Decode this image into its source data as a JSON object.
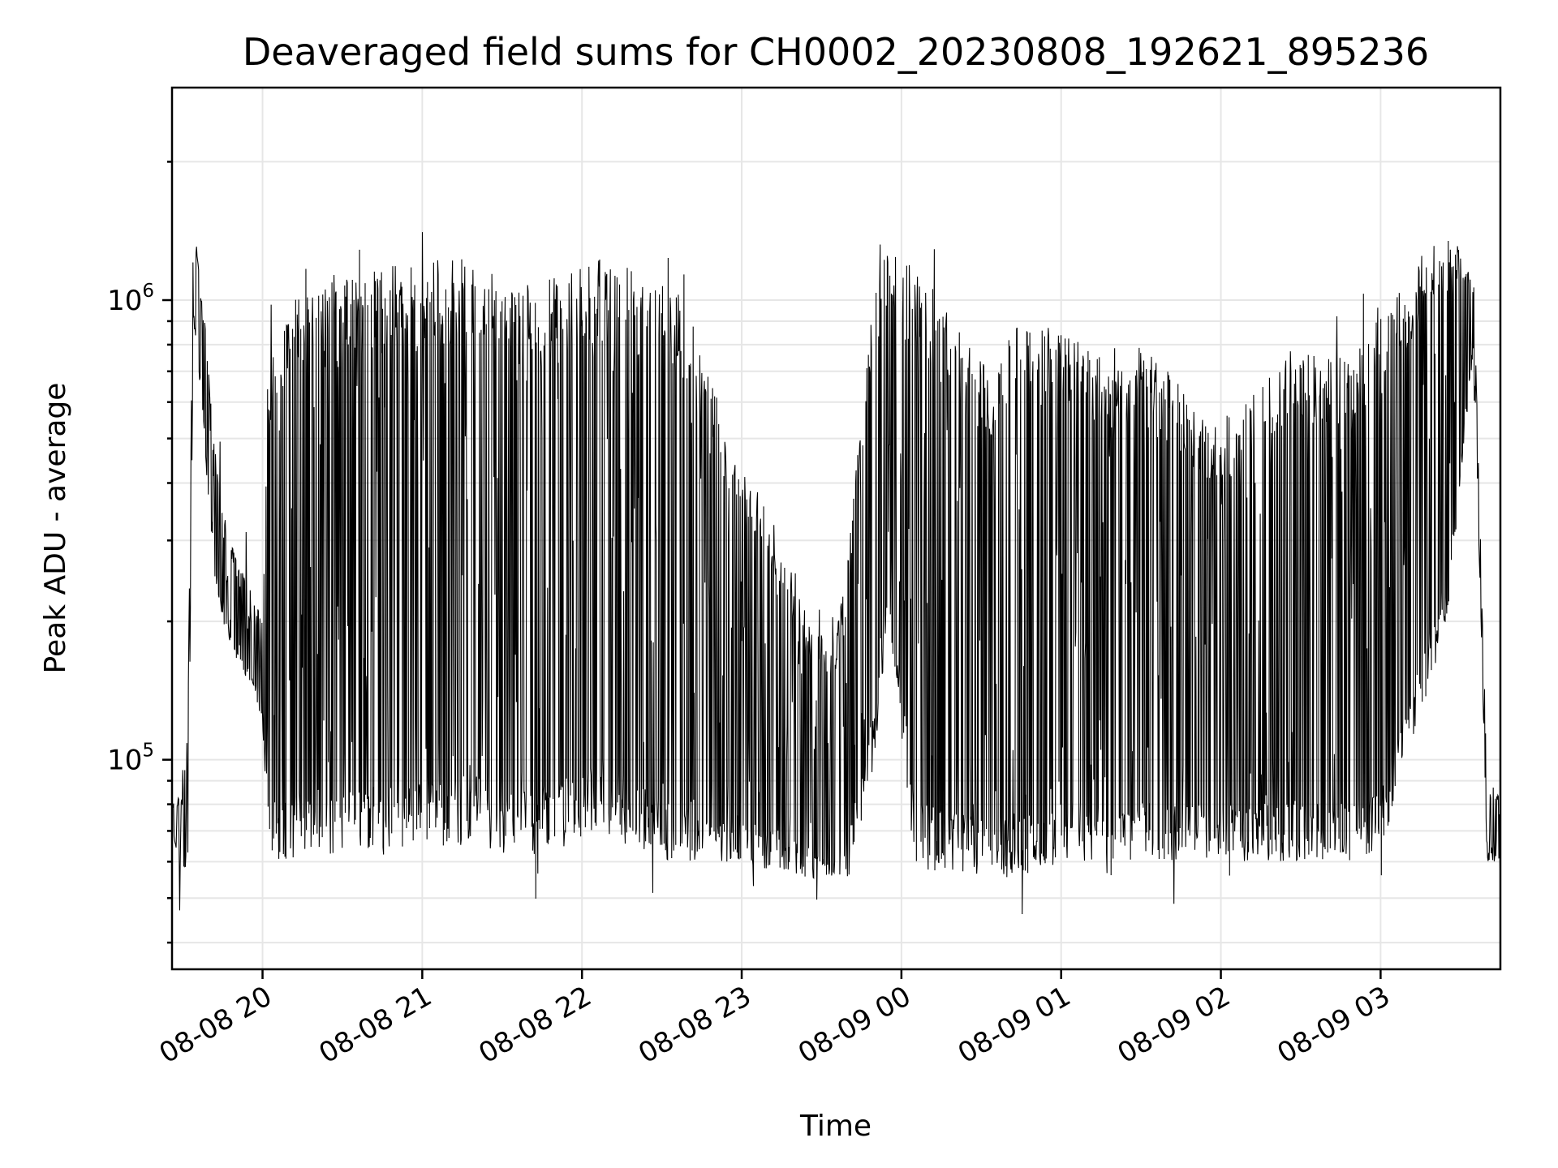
{
  "chart_data": {
    "type": "line",
    "title": "Deaveraged field sums for CH0002_20230808_192621_895236",
    "xlabel": "Time",
    "ylabel": "Peak ADU - average",
    "yscale": "log",
    "ylim": [
      35000,
      2900000
    ],
    "xlim": [
      "2023-08-08 19:26",
      "2023-08-09 03:45"
    ],
    "x_ticks": [
      {
        "value": "2023-08-08 20:00",
        "label": "08-08 20"
      },
      {
        "value": "2023-08-08 21:00",
        "label": "08-08 21"
      },
      {
        "value": "2023-08-08 22:00",
        "label": "08-08 22"
      },
      {
        "value": "2023-08-08 23:00",
        "label": "08-08 23"
      },
      {
        "value": "2023-08-09 00:00",
        "label": "08-09 00"
      },
      {
        "value": "2023-08-09 01:00",
        "label": "08-09 01"
      },
      {
        "value": "2023-08-09 02:00",
        "label": "08-09 02"
      },
      {
        "value": "2023-08-09 03:00",
        "label": "08-09 03"
      }
    ],
    "y_ticks": [
      {
        "value": 100000,
        "base": "10",
        "exp": "5"
      },
      {
        "value": 1000000,
        "base": "10",
        "exp": "6"
      }
    ],
    "grid": true,
    "line_color": "#000000",
    "series": [
      {
        "x": [
          "2023-08-08 19:26",
          "2023-08-08 19:30",
          "2023-08-08 19:32",
          "2023-08-08 19:34",
          "2023-08-08 19:36",
          "2023-08-08 19:38",
          "2023-08-08 19:40",
          "2023-08-08 19:42",
          "2023-08-08 19:45",
          "2023-08-08 19:48",
          "2023-08-08 19:51",
          "2023-08-08 19:54",
          "2023-08-08 19:57",
          "2023-08-08 20:00",
          "2023-08-08 20:02",
          "2023-08-08 20:05",
          "2023-08-08 20:10",
          "2023-08-08 20:15",
          "2023-08-08 20:20",
          "2023-08-08 20:25",
          "2023-08-08 20:30",
          "2023-08-08 20:40",
          "2023-08-08 20:50",
          "2023-08-08 21:00",
          "2023-08-08 21:10",
          "2023-08-08 21:20",
          "2023-08-08 21:30",
          "2023-08-08 21:35",
          "2023-08-08 21:45",
          "2023-08-08 21:55",
          "2023-08-08 22:05",
          "2023-08-08 22:15",
          "2023-08-08 22:25",
          "2023-08-08 22:35",
          "2023-08-08 22:45",
          "2023-08-08 22:55",
          "2023-08-08 23:05",
          "2023-08-08 23:15",
          "2023-08-08 23:25",
          "2023-08-08 23:35",
          "2023-08-08 23:40",
          "2023-08-08 23:50",
          "2023-08-08 23:55",
          "2023-08-09 00:05",
          "2023-08-09 00:15",
          "2023-08-09 00:25",
          "2023-08-09 00:35",
          "2023-08-09 00:45",
          "2023-08-09 00:50",
          "2023-08-09 01:00",
          "2023-08-09 01:10",
          "2023-08-09 01:20",
          "2023-08-09 01:30",
          "2023-08-09 01:40",
          "2023-08-09 01:50",
          "2023-08-09 02:00",
          "2023-08-09 02:10",
          "2023-08-09 02:20",
          "2023-08-09 02:30",
          "2023-08-09 02:40",
          "2023-08-09 02:50",
          "2023-08-09 03:00",
          "2023-08-09 03:10",
          "2023-08-09 03:20",
          "2023-08-09 03:25",
          "2023-08-09 03:30",
          "2023-08-09 03:35",
          "2023-08-09 03:40",
          "2023-08-09 03:45"
        ],
        "upper": [
          80000,
          85000,
          130000,
          1500000,
          1200000,
          950000,
          700000,
          480000,
          350000,
          300000,
          260000,
          250000,
          230000,
          200000,
          700000,
          900000,
          1000000,
          1050000,
          1050000,
          1100000,
          1100000,
          1150000,
          1200000,
          1200000,
          1250000,
          1250000,
          1150000,
          1100000,
          1100000,
          1150000,
          1250000,
          1200000,
          1150000,
          1100000,
          800000,
          500000,
          400000,
          300000,
          200000,
          180000,
          300000,
          1100000,
          1300000,
          1200000,
          1000000,
          800000,
          700000,
          950000,
          900000,
          850000,
          800000,
          700000,
          800000,
          700000,
          600000,
          550000,
          600000,
          750000,
          800000,
          750000,
          750000,
          1000000,
          1100000,
          1350000,
          1350000,
          1300000,
          1100000,
          90000,
          85000
        ],
        "lower": [
          70000,
          55000,
          60000,
          900000,
          700000,
          500000,
          350000,
          250000,
          200000,
          180000,
          160000,
          150000,
          140000,
          120000,
          65000,
          60000,
          60000,
          62000,
          62000,
          62000,
          62000,
          62000,
          62000,
          65000,
          65000,
          65000,
          60000,
          60000,
          62000,
          65000,
          70000,
          65000,
          62000,
          60000,
          60000,
          60000,
          58000,
          58000,
          55000,
          55000,
          55000,
          100000,
          200000,
          60000,
          55000,
          55000,
          55000,
          55000,
          55000,
          60000,
          60000,
          55000,
          60000,
          60000,
          62000,
          60000,
          60000,
          60000,
          60000,
          60000,
          60000,
          62000,
          100000,
          150000,
          200000,
          400000,
          800000,
          60000,
          60000
        ]
      }
    ]
  }
}
